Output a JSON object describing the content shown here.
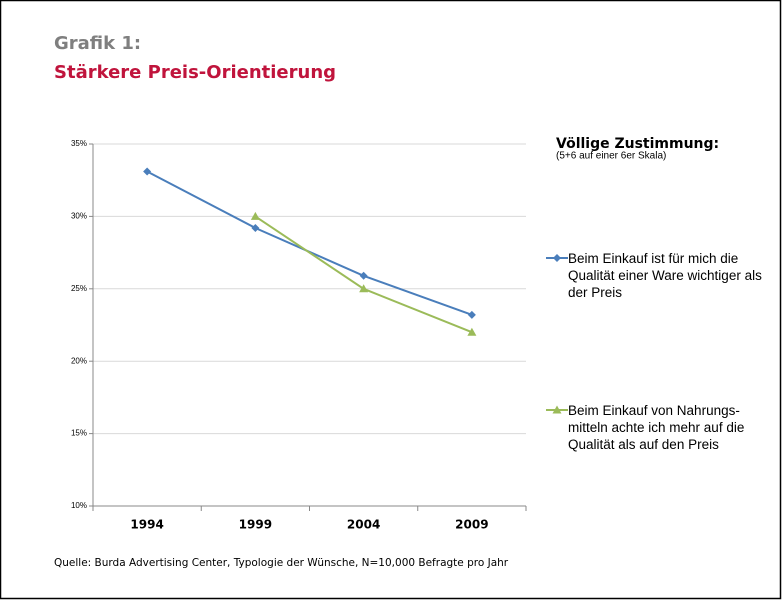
{
  "chart_data": {
    "type": "line",
    "kicker": "Grafik 1:",
    "title": "Stärkere Preis-Orientierung",
    "legend_title": "Völlige Zustimmung:",
    "legend_subtitle": "(5+6 auf einer 6er Skala)",
    "source": "Quelle: Burda Advertising Center, Typologie der Wünsche, N=10,000 Befragte pro Jahr",
    "categories": [
      "1994",
      "1999",
      "2004",
      "2009"
    ],
    "series": [
      {
        "name": "Beim Einkauf ist für mich die Qualität einer Ware wichtiger als der Preis",
        "color": "#4a7ebb",
        "marker": "diamond",
        "values": [
          33.1,
          29.2,
          25.9,
          23.2
        ]
      },
      {
        "name": "Beim Einkauf von Nahrungs-mitteln achte ich mehr auf die Qualität als auf den Preis",
        "color": "#9bbb59",
        "marker": "triangle",
        "values": [
          null,
          30,
          25,
          22
        ]
      }
    ],
    "ylim": [
      10,
      35
    ],
    "yticks": [
      {
        "value": 10,
        "label": "10%"
      },
      {
        "value": 15,
        "label": "15%"
      },
      {
        "value": 20,
        "label": "20%"
      },
      {
        "value": 25,
        "label": "25%"
      },
      {
        "value": 30,
        "label": "30%"
      },
      {
        "value": 35,
        "label": "35%"
      }
    ],
    "grid": true,
    "legend": "right"
  }
}
